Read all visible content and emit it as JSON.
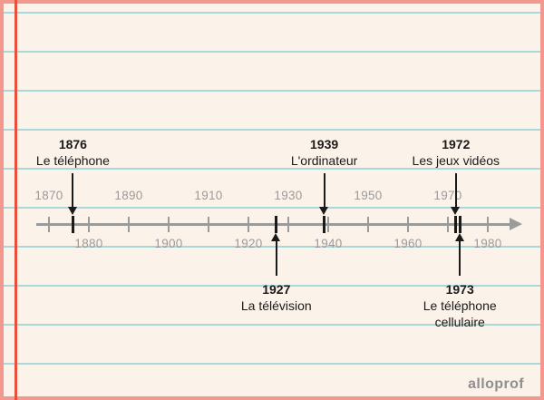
{
  "colors": {
    "paper": "#FBF2E9",
    "ruled": "#A8D8D8",
    "margin": "#E8503C",
    "border": "#F2988F",
    "axis": "#9B9B9B",
    "event": "#1A1A1A",
    "logo": "#8F8F8F"
  },
  "page": {
    "logo_text": "alloprof"
  },
  "timeline": {
    "axis": {
      "start_year": 1870,
      "end_year": 1980,
      "step_years": 10
    },
    "decade_labels_above": [
      "1870",
      "1890",
      "1910",
      "1930",
      "1950",
      "1970"
    ],
    "decade_labels_below": [
      "1880",
      "1900",
      "1920",
      "1940",
      "1960",
      "1980"
    ],
    "events": [
      {
        "year": "1876",
        "label": "Le téléphone",
        "side": "above"
      },
      {
        "year": "1927",
        "label": "La télévision",
        "side": "below"
      },
      {
        "year": "1939",
        "label": "L'ordinateur",
        "side": "above"
      },
      {
        "year": "1972",
        "label": "Les jeux vidéos",
        "side": "above"
      },
      {
        "year": "1973",
        "label": "Le téléphone cellulaire",
        "side": "below"
      }
    ]
  },
  "chart_data": {
    "type": "timeline",
    "axis_range": [
      1870,
      1980
    ],
    "tick_step": 10,
    "x": [
      1876,
      1927,
      1939,
      1972,
      1973
    ],
    "labels": [
      "Le téléphone",
      "La télévision",
      "L'ordinateur",
      "Les jeux vidéos",
      "Le téléphone cellulaire"
    ]
  }
}
